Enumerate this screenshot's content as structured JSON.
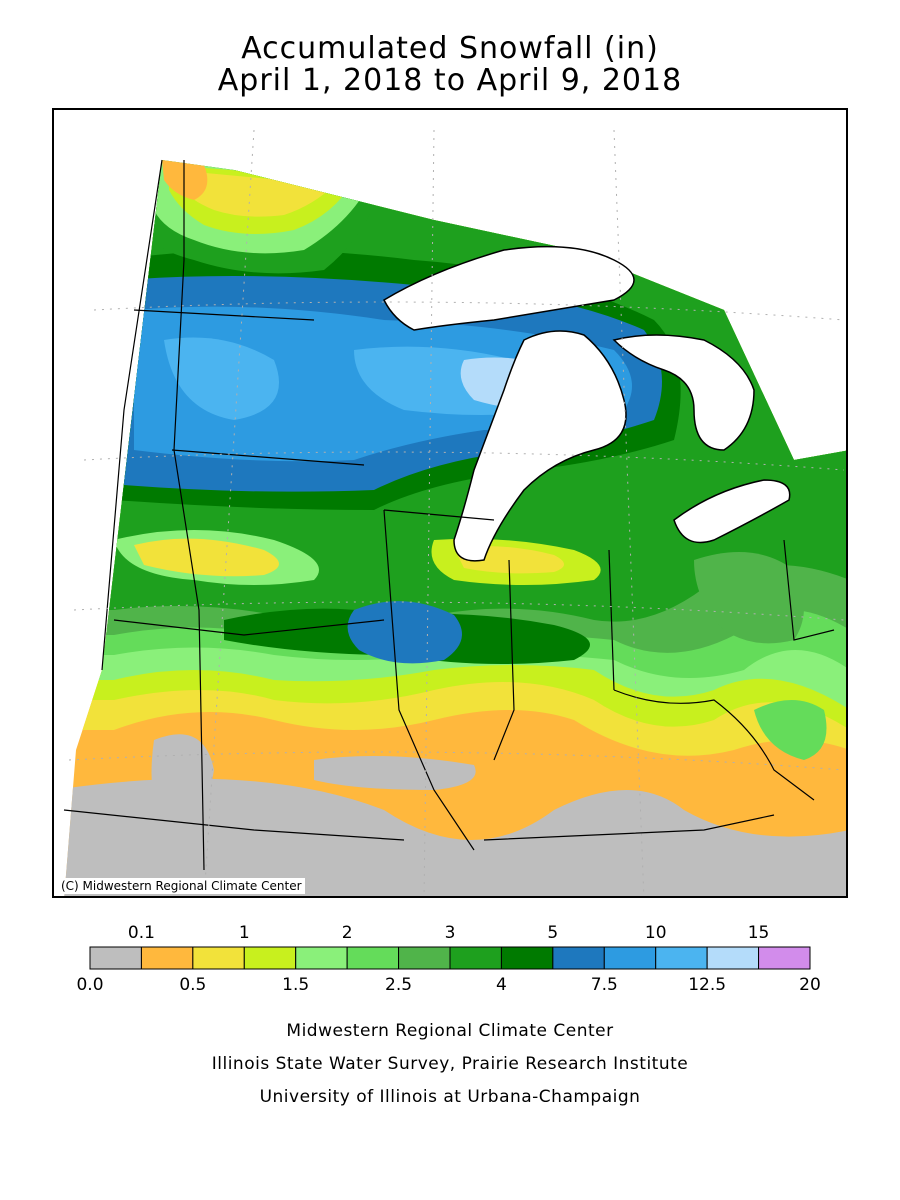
{
  "title": {
    "line1": "Accumulated Snowfall (in)",
    "line2": "April 1, 2018 to April 9, 2018"
  },
  "map": {
    "copyright": "(C) Midwestern Regional Climate Center",
    "colors": {
      "water": "#ffffff",
      "border": "#000000",
      "gridline": "#b0b0b0"
    }
  },
  "legend": {
    "top_labels": [
      "0.1",
      "1",
      "2",
      "3",
      "5",
      "10",
      "15"
    ],
    "bottom_labels": [
      "0.0",
      "0.5",
      "1.5",
      "2.5",
      "4",
      "7.5",
      "12.5",
      "20"
    ],
    "bins": [
      {
        "min": 0.0,
        "max": 0.1,
        "color": "#bebebe"
      },
      {
        "min": 0.1,
        "max": 0.5,
        "color": "#ffb83d"
      },
      {
        "min": 0.5,
        "max": 1,
        "color": "#f2e23a"
      },
      {
        "min": 1,
        "max": 1.5,
        "color": "#c8f01e"
      },
      {
        "min": 1.5,
        "max": 2,
        "color": "#8af07a"
      },
      {
        "min": 2,
        "max": 2.5,
        "color": "#64dc5a"
      },
      {
        "min": 2.5,
        "max": 3,
        "color": "#50b44a"
      },
      {
        "min": 3,
        "max": 4,
        "color": "#1ea01e"
      },
      {
        "min": 4,
        "max": 5,
        "color": "#007a00"
      },
      {
        "min": 5,
        "max": 7.5,
        "color": "#1e78be"
      },
      {
        "min": 7.5,
        "max": 10,
        "color": "#2d9be1"
      },
      {
        "min": 10,
        "max": 12.5,
        "color": "#4bb4f0"
      },
      {
        "min": 12.5,
        "max": 15,
        "color": "#b4dcfa"
      },
      {
        "min": 15,
        "max": 20,
        "color": "#d28ceb"
      }
    ]
  },
  "credits": {
    "line1": "Midwestern Regional Climate Center",
    "line2": "Illinois State Water Survey, Prairie Research Institute",
    "line3": "University of Illinois at Urbana-Champaign"
  }
}
